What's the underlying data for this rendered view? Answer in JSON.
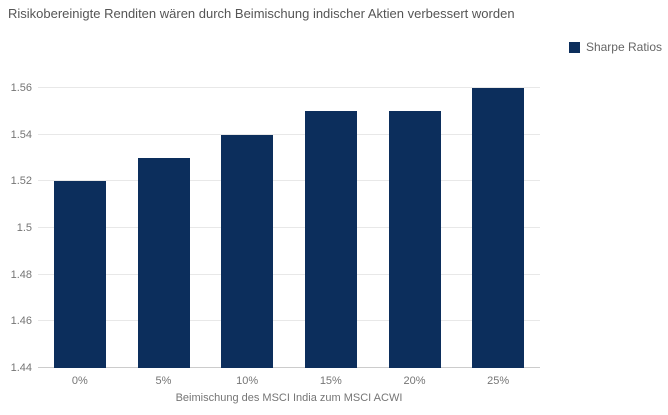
{
  "title": "Risikobereinigte Renditen wären durch Beimischung indischer Aktien verbessert worden",
  "legend": {
    "label": "Sharpe Ratios",
    "color": "#0c2e5c"
  },
  "chart_data": {
    "type": "bar",
    "title": "Risikobereinigte Renditen wären durch Beimischung indischer Aktien verbessert worden",
    "categories": [
      "0%",
      "5%",
      "10%",
      "15%",
      "20%",
      "25%"
    ],
    "series": [
      {
        "name": "Sharpe Ratios",
        "values": [
          1.52,
          1.53,
          1.54,
          1.55,
          1.55,
          1.56
        ],
        "color": "#0c2e5c"
      }
    ],
    "xlabel": "Beimischung des MSCI India zum MSCI ACWI",
    "ylabel": "",
    "ylim": [
      1.44,
      1.56
    ],
    "y_ticks": [
      {
        "value": 1.44,
        "label": "1.44"
      },
      {
        "value": 1.46,
        "label": "1.46"
      },
      {
        "value": 1.48,
        "label": "1.48"
      },
      {
        "value": 1.5,
        "label": "1.5"
      },
      {
        "value": 1.52,
        "label": "1.52"
      },
      {
        "value": 1.54,
        "label": "1.54"
      },
      {
        "value": 1.56,
        "label": "1.56"
      }
    ],
    "grid": true,
    "legend_position": "top-right",
    "colors": {
      "bar": "#0c2e5c",
      "gridline": "#e8e8e8",
      "baseline": "#cccccc",
      "tick_text": "#757575",
      "title_text": "#555555"
    }
  }
}
